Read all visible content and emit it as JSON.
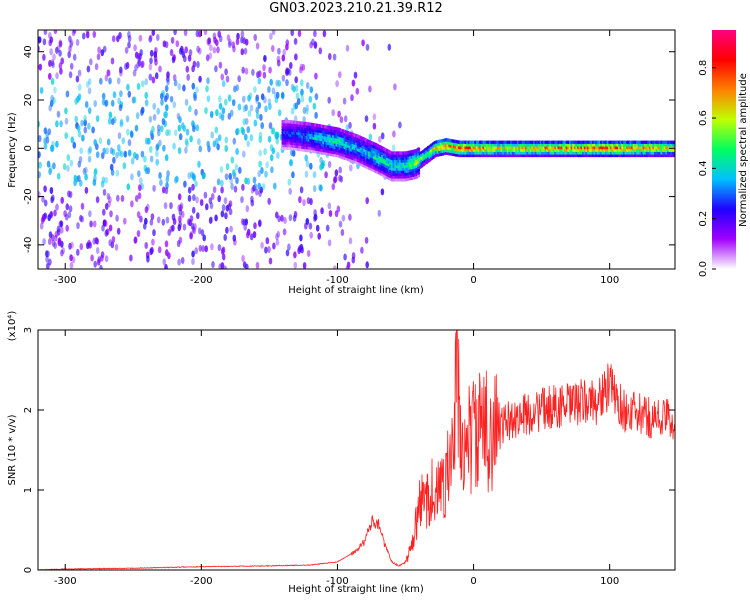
{
  "figure": {
    "title": "GN03.2023.210.21.39.R12"
  },
  "chart_data": [
    {
      "type": "heatmap",
      "xlabel": "Height of straight line (km)",
      "ylabel": "Frequency (Hz)",
      "xlim": [
        -320,
        148
      ],
      "ylim": [
        -50,
        49
      ],
      "xticks": [
        -300,
        -200,
        -100,
        0,
        100
      ],
      "yticks": [
        -40,
        -20,
        0,
        20,
        40
      ],
      "colorbar": {
        "label": "Normalized spectral amplitude",
        "range": [
          0.0,
          0.95
        ],
        "ticks": [
          0.0,
          0.2,
          0.4,
          0.6,
          0.8
        ],
        "colormap": [
          "#ffffff",
          "#a000ff",
          "#2000ff",
          "#00c0ff",
          "#00ff60",
          "#c0ff00",
          "#ff8000",
          "#ff0000",
          "#ff0080"
        ]
      },
      "ridge": {
        "x": [
          -135,
          -120,
          -100,
          -85,
          -70,
          -60,
          -50,
          -42,
          -35,
          -28,
          -20,
          -10,
          0,
          20,
          50,
          100,
          148
        ],
        "frequency": [
          6,
          5,
          3,
          0,
          -4,
          -7,
          -7,
          -6,
          -3,
          0,
          1,
          0,
          0,
          0,
          0,
          0,
          0
        ],
        "peak_amplitude": [
          0.3,
          0.4,
          0.5,
          0.4,
          0.5,
          0.45,
          0.5,
          0.65,
          0.55,
          0.8,
          0.85,
          0.85,
          0.85,
          0.7,
          0.8,
          0.85,
          0.7
        ]
      },
      "grid": false
    },
    {
      "type": "line",
      "xlabel": "Height of straight line (km)",
      "ylabel": "SNR (10 * v/v)",
      "y_scale_factor": "(x10⁴)",
      "xlim": [
        -320,
        148
      ],
      "ylim": [
        0,
        3
      ],
      "xticks": [
        -300,
        -200,
        -100,
        0,
        100
      ],
      "yticks": [
        0,
        1,
        2,
        3
      ],
      "series": [
        {
          "color": "#ff2020",
          "x": [
            -320,
            -300,
            -250,
            -200,
            -150,
            -120,
            -100,
            -90,
            -80,
            -75,
            -70,
            -65,
            -60,
            -55,
            -50,
            -45,
            -40,
            -35,
            -30,
            -25,
            -20,
            -15,
            -12,
            -10,
            -5,
            0,
            10,
            20,
            30,
            40,
            50,
            60,
            70,
            80,
            90,
            100,
            110,
            120,
            130,
            140,
            148
          ],
          "y": [
            0.0,
            0.01,
            0.02,
            0.04,
            0.05,
            0.06,
            0.1,
            0.2,
            0.35,
            0.6,
            0.6,
            0.3,
            0.1,
            0.05,
            0.1,
            0.3,
            0.8,
            0.9,
            1.0,
            0.95,
            1.2,
            1.4,
            2.7,
            1.5,
            1.6,
            1.7,
            1.75,
            1.8,
            1.9,
            1.95,
            2.0,
            2.05,
            2.05,
            2.1,
            2.1,
            2.3,
            2.0,
            1.95,
            1.9,
            1.9,
            1.88
          ]
        }
      ],
      "grid": false
    }
  ]
}
